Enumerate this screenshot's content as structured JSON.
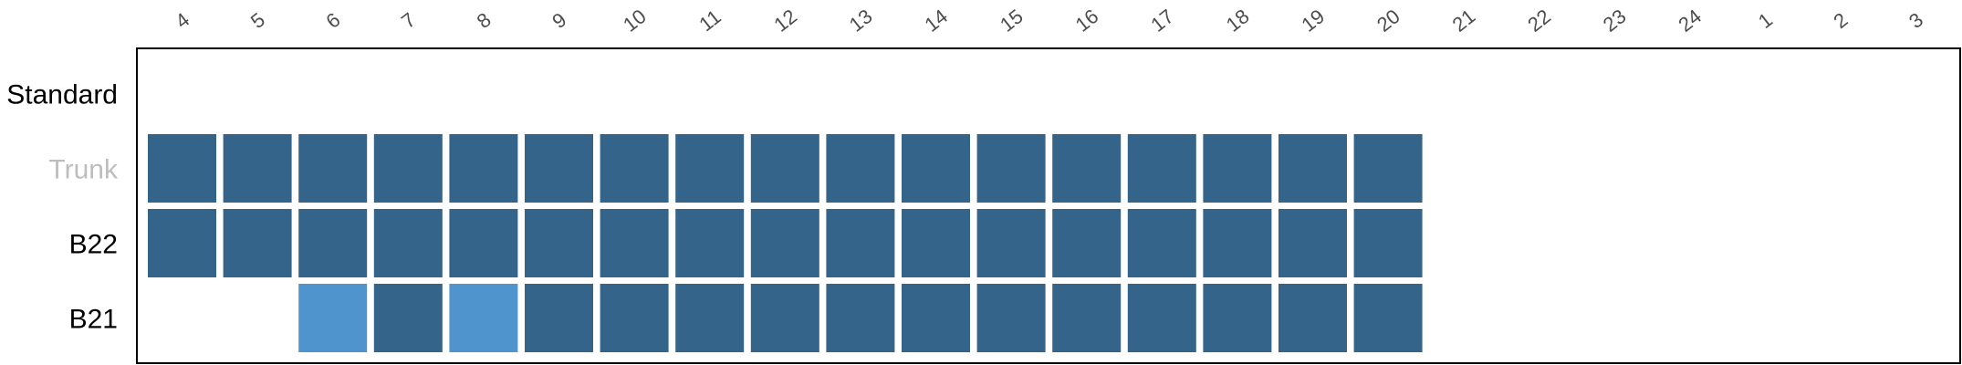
{
  "chart_data": {
    "type": "heatmap",
    "title": "",
    "xlabel": "",
    "ylabel": "",
    "x": [
      "4",
      "5",
      "6",
      "7",
      "8",
      "9",
      "10",
      "11",
      "12",
      "13",
      "14",
      "15",
      "16",
      "17",
      "18",
      "19",
      "20",
      "21",
      "22",
      "23",
      "24",
      "1",
      "2",
      "3"
    ],
    "rows": [
      {
        "label": "Standard",
        "label_color": "#000000",
        "cells": [
          null,
          null,
          null,
          null,
          null,
          null,
          null,
          null,
          null,
          null,
          null,
          null,
          null,
          null,
          null,
          null,
          null,
          null,
          null,
          null,
          null,
          null,
          null,
          null
        ]
      },
      {
        "label": "Trunk",
        "label_color": "#bdbdbd",
        "cells": [
          "dark",
          "dark",
          "dark",
          "dark",
          "dark",
          "dark",
          "dark",
          "dark",
          "dark",
          "dark",
          "dark",
          "dark",
          "dark",
          "dark",
          "dark",
          "dark",
          "dark",
          null,
          null,
          null,
          null,
          null,
          null,
          null
        ]
      },
      {
        "label": "B22",
        "label_color": "#000000",
        "cells": [
          "dark",
          "dark",
          "dark",
          "dark",
          "dark",
          "dark",
          "dark",
          "dark",
          "dark",
          "dark",
          "dark",
          "dark",
          "dark",
          "dark",
          "dark",
          "dark",
          "dark",
          null,
          null,
          null,
          null,
          null,
          null,
          null
        ]
      },
      {
        "label": "B21",
        "label_color": "#000000",
        "cells": [
          null,
          null,
          "light",
          "dark",
          "light",
          "dark",
          "dark",
          "dark",
          "dark",
          "dark",
          "dark",
          "dark",
          "dark",
          "dark",
          "dark",
          "dark",
          "dark",
          null,
          null,
          null,
          null,
          null,
          null,
          null
        ]
      }
    ],
    "colors": {
      "dark": "#35648b",
      "light": "#4f94cd"
    },
    "legend": "none",
    "grid": false
  }
}
